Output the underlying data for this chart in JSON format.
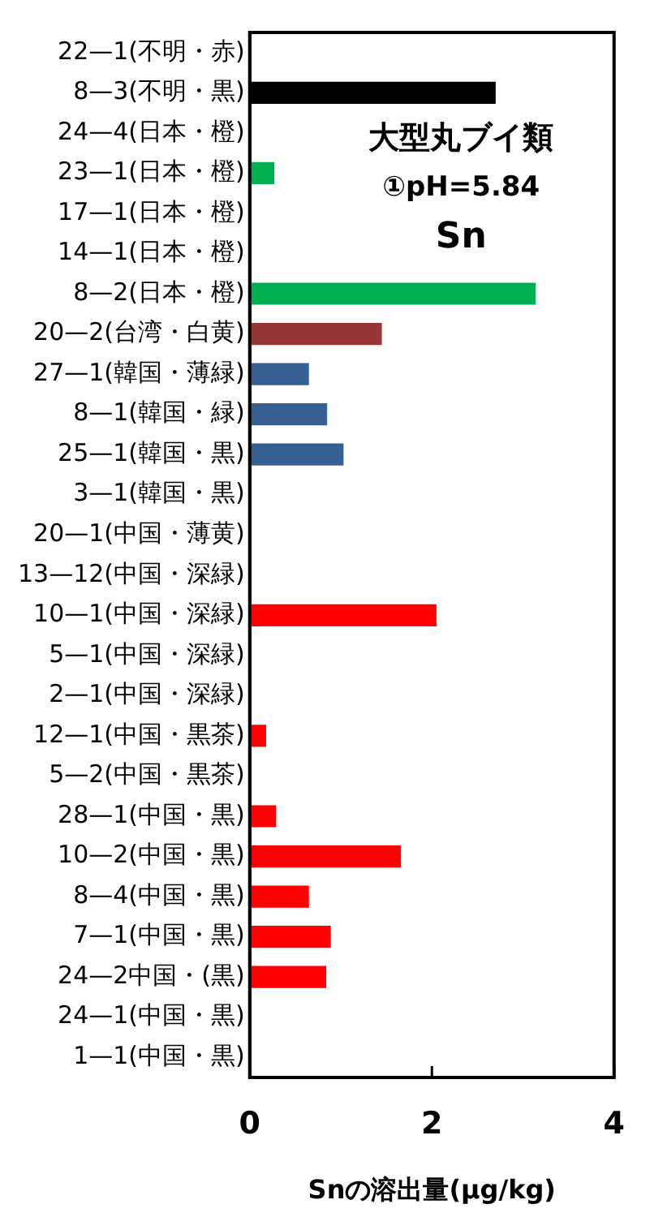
{
  "chart_data": {
    "type": "bar",
    "orientation": "horizontal",
    "title": "大型丸ブイ類",
    "subtitle": "①pH=5.84",
    "annotations": [
      "Sn"
    ],
    "xlabel": "Snの溶出量(μg/kg)",
    "categories": [
      "22—1(不明・赤)",
      "8—3(不明・黒)",
      "24—4(日本・橙)",
      "23—1(日本・橙)",
      "17—1(日本・橙)",
      "14—1(日本・橙)",
      "8—2(日本・橙)",
      "20—2(台湾・白黄)",
      "27—1(韓国・薄緑)",
      "8—1(韓国・緑)",
      "25—1(韓国・黒)",
      "3—1(韓国・黒)",
      "20—1(中国・薄黄)",
      "13—12(中国・深緑)",
      "10—1(中国・深緑)",
      "5—1(中国・深緑)",
      "2—1(中国・深緑)",
      "12—1(中国・黒茶)",
      "5—2(中国・黒茶)",
      "28—1(中国・黒)",
      "10—2(中国・黒)",
      "8—4(中国・黒)",
      "7—1(中国・黒)",
      "24—2中国・(黒)",
      "24—1(中国・黒)",
      "1—1(中国・黒)"
    ],
    "values": [
      null,
      2.7,
      null,
      0.27,
      null,
      null,
      3.14,
      1.45,
      0.65,
      0.85,
      1.03,
      null,
      null,
      null,
      2.05,
      null,
      null,
      0.18,
      null,
      0.29,
      1.66,
      0.65,
      0.89,
      0.84,
      null,
      null
    ],
    "colors": [
      "#000000",
      "#000000",
      "#00b050",
      "#00b050",
      "#00b050",
      "#00b050",
      "#00b050",
      "#953735",
      "#376092",
      "#376092",
      "#376092",
      "#376092",
      "#ff0000",
      "#ff0000",
      "#ff0000",
      "#ff0000",
      "#ff0000",
      "#ff0000",
      "#ff0000",
      "#ff0000",
      "#ff0000",
      "#ff0000",
      "#ff0000",
      "#ff0000",
      "#ff0000",
      "#ff0000"
    ],
    "xlim": [
      0,
      4
    ],
    "xticks": [
      0,
      2,
      4
    ],
    "grid": false,
    "legend": false
  }
}
